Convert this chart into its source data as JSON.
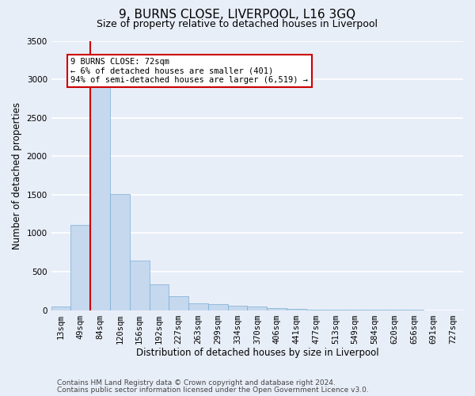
{
  "title": "9, BURNS CLOSE, LIVERPOOL, L16 3GQ",
  "subtitle": "Size of property relative to detached houses in Liverpool",
  "xlabel": "Distribution of detached houses by size in Liverpool",
  "ylabel": "Number of detached properties",
  "categories": [
    "13sqm",
    "49sqm",
    "84sqm",
    "120sqm",
    "156sqm",
    "192sqm",
    "227sqm",
    "263sqm",
    "299sqm",
    "334sqm",
    "370sqm",
    "406sqm",
    "441sqm",
    "477sqm",
    "513sqm",
    "549sqm",
    "584sqm",
    "620sqm",
    "656sqm",
    "691sqm",
    "727sqm"
  ],
  "values": [
    50,
    1110,
    2920,
    1510,
    640,
    340,
    185,
    90,
    75,
    55,
    50,
    30,
    20,
    10,
    5,
    3,
    2,
    1,
    1,
    0,
    0
  ],
  "bar_color": "#c5d8ee",
  "bar_edgecolor": "#7aadd4",
  "vline_color": "#cc0000",
  "vline_x": 1.5,
  "annotation_text": "9 BURNS CLOSE: 72sqm\n← 6% of detached houses are smaller (401)\n94% of semi-detached houses are larger (6,519) →",
  "annotation_box_edgecolor": "#cc0000",
  "annotation_box_facecolor": "#ffffff",
  "ylim": [
    0,
    3500
  ],
  "yticks": [
    0,
    500,
    1000,
    1500,
    2000,
    2500,
    3000,
    3500
  ],
  "footnote1": "Contains HM Land Registry data © Crown copyright and database right 2024.",
  "footnote2": "Contains public sector information licensed under the Open Government Licence v3.0.",
  "background_color": "#e8eef8",
  "grid_color": "#ffffff",
  "title_fontsize": 11,
  "subtitle_fontsize": 9,
  "axis_label_fontsize": 8.5,
  "tick_fontsize": 7.5,
  "annotation_fontsize": 7.5,
  "footnote_fontsize": 6.5
}
